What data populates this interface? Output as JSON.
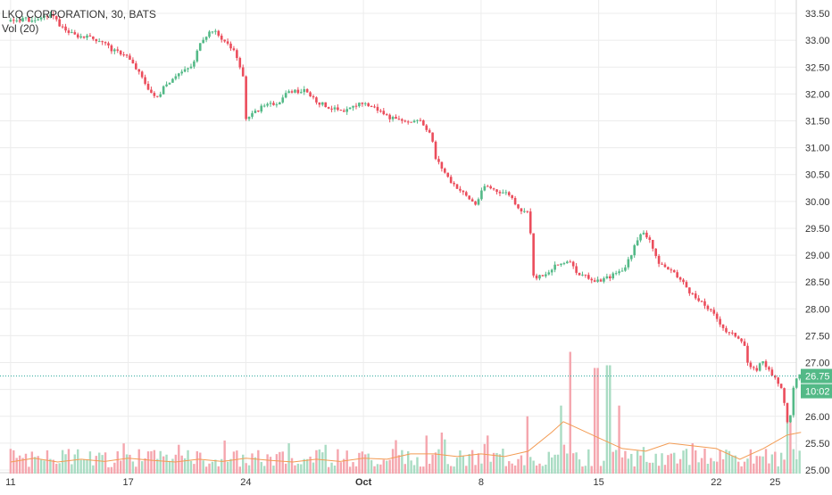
{
  "legend": {
    "symbol": "LKQ CORPORATION, 30, BATS",
    "indicator": "Vol (20)"
  },
  "chart_data": {
    "type": "candlestick",
    "title": "LKQ CORPORATION, 30, BATS",
    "indicator": "Vol (20)",
    "y_ticks": [
      "25.00",
      "25.50",
      "26.00",
      "26.50",
      "27.00",
      "27.50",
      "28.00",
      "28.50",
      "29.00",
      "29.50",
      "30.00",
      "30.50",
      "31.00",
      "31.50",
      "32.00",
      "32.50",
      "33.00",
      "33.50"
    ],
    "ylim": [
      24.95,
      33.75
    ],
    "x_ticks": [
      "11",
      "17",
      "24",
      "Oct",
      "8",
      "15",
      "22",
      "25"
    ],
    "x_tick_positions": [
      0,
      5,
      10,
      15,
      20,
      25,
      30,
      32.5
    ],
    "xlim": [
      -0.45,
      33.4
    ],
    "last_price": "26.75",
    "last_value": 26.75,
    "countdown": "10:02",
    "price_path": [
      [
        0,
        33.35
      ],
      [
        0.7,
        33.4
      ],
      [
        1.3,
        33.35
      ],
      [
        1.8,
        33.5
      ],
      [
        2.3,
        33.25
      ],
      [
        2.8,
        33.1
      ],
      [
        3.4,
        33.05
      ],
      [
        4.0,
        33.0
      ],
      [
        4.5,
        32.8
      ],
      [
        5.0,
        32.75
      ],
      [
        5.5,
        32.45
      ],
      [
        6.0,
        32.1
      ],
      [
        6.3,
        31.9
      ],
      [
        6.7,
        32.15
      ],
      [
        7.1,
        32.35
      ],
      [
        7.6,
        32.45
      ],
      [
        7.9,
        32.55
      ],
      [
        8.2,
        33.0
      ],
      [
        8.7,
        33.2
      ],
      [
        9.2,
        33.0
      ],
      [
        9.6,
        32.8
      ],
      [
        10.0,
        32.4
      ],
      [
        10.1,
        31.5
      ],
      [
        10.8,
        31.75
      ],
      [
        11.5,
        31.85
      ],
      [
        12.0,
        32.05
      ],
      [
        12.7,
        32.05
      ],
      [
        13.2,
        31.85
      ],
      [
        13.7,
        31.75
      ],
      [
        14.3,
        31.65
      ],
      [
        15.0,
        31.85
      ],
      [
        15.6,
        31.75
      ],
      [
        16.3,
        31.55
      ],
      [
        16.9,
        31.45
      ],
      [
        17.5,
        31.55
      ],
      [
        18.0,
        31.25
      ],
      [
        18.2,
        30.8
      ],
      [
        18.8,
        30.4
      ],
      [
        19.5,
        30.1
      ],
      [
        19.9,
        29.95
      ],
      [
        20.3,
        30.3
      ],
      [
        20.8,
        30.2
      ],
      [
        21.3,
        30.15
      ],
      [
        21.8,
        29.85
      ],
      [
        22.2,
        29.75
      ],
      [
        22.3,
        28.6
      ],
      [
        22.8,
        28.6
      ],
      [
        23.3,
        28.8
      ],
      [
        23.8,
        28.9
      ],
      [
        24.3,
        28.65
      ],
      [
        25.0,
        28.5
      ],
      [
        25.6,
        28.6
      ],
      [
        26.2,
        28.75
      ],
      [
        26.6,
        29.1
      ],
      [
        27.0,
        29.45
      ],
      [
        27.3,
        29.3
      ],
      [
        27.6,
        28.9
      ],
      [
        28.2,
        28.7
      ],
      [
        28.7,
        28.5
      ],
      [
        29.2,
        28.2
      ],
      [
        29.7,
        28.05
      ],
      [
        30.2,
        27.8
      ],
      [
        30.6,
        27.55
      ],
      [
        31.0,
        27.5
      ],
      [
        31.3,
        27.4
      ],
      [
        31.5,
        26.9
      ],
      [
        31.8,
        26.85
      ],
      [
        32.1,
        27.05
      ],
      [
        32.5,
        26.75
      ],
      [
        32.9,
        26.55
      ],
      [
        33.2,
        25.75
      ],
      [
        33.4,
        26.5
      ],
      [
        33.6,
        26.75
      ]
    ],
    "volume": {
      "ma_path": [
        [
          0,
          25.15
        ],
        [
          1,
          25.22
        ],
        [
          2,
          25.15
        ],
        [
          3,
          25.2
        ],
        [
          4,
          25.16
        ],
        [
          5,
          25.22
        ],
        [
          6,
          25.18
        ],
        [
          7,
          25.15
        ],
        [
          8,
          25.2
        ],
        [
          9,
          25.16
        ],
        [
          10,
          25.22
        ],
        [
          11,
          25.18
        ],
        [
          12,
          25.15
        ],
        [
          13,
          25.2
        ],
        [
          14,
          25.16
        ],
        [
          15,
          25.22
        ],
        [
          16,
          25.2
        ],
        [
          17,
          25.3
        ],
        [
          18,
          25.3
        ],
        [
          19,
          25.25
        ],
        [
          20,
          25.3
        ],
        [
          21,
          25.25
        ],
        [
          22,
          25.35
        ],
        [
          23,
          25.7
        ],
        [
          23.5,
          25.9
        ],
        [
          24,
          25.8
        ],
        [
          25,
          25.6
        ],
        [
          26,
          25.4
        ],
        [
          27,
          25.35
        ],
        [
          28,
          25.5
        ],
        [
          29,
          25.45
        ],
        [
          30,
          25.4
        ],
        [
          31,
          25.2
        ],
        [
          32,
          25.4
        ],
        [
          33,
          25.65
        ],
        [
          33.6,
          25.7
        ]
      ],
      "spikes": [
        [
          23.8,
          27.2
        ],
        [
          24.9,
          26.9
        ],
        [
          25.4,
          26.95
        ],
        [
          23.4,
          26.2
        ],
        [
          22.0,
          26.0
        ],
        [
          25.9,
          26.2
        ],
        [
          33.1,
          26.0
        ]
      ]
    }
  },
  "colors": {
    "up": "#53b987",
    "down": "#eb4d5c",
    "vol_up": "#a9dcc3",
    "vol_down": "#f5a6ae",
    "ma": "#f39b53",
    "grid": "#ececec",
    "axis_text": "#333333",
    "price_label_bg": "#53b987",
    "last_line": "#26a69a"
  }
}
